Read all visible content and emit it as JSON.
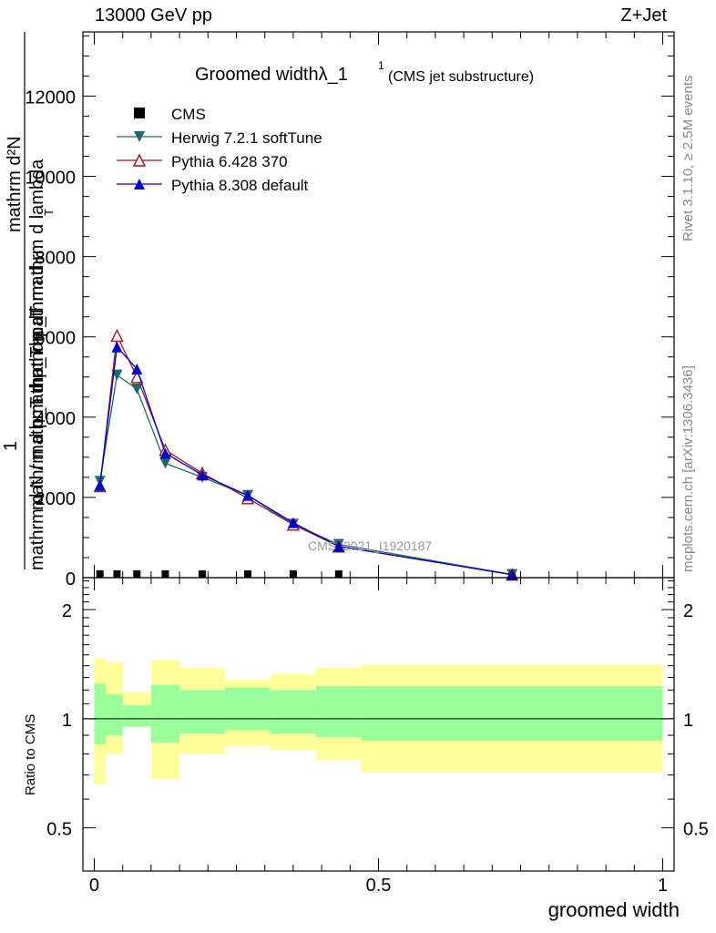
{
  "header": {
    "left": "13000 GeV pp",
    "right": "Z+Jet"
  },
  "side_labels": {
    "rivet": "Rivet 3.1.10, ≥ 2.5M events",
    "mcplots": "mcplots.cern.ch [arXiv:1306.3436]"
  },
  "chart_data": [
    {
      "type": "line",
      "title": "Groomed width",
      "title_symbol": "λ_1",
      "title_sup": "1",
      "title_note": "(CMS jet substructure)",
      "ylabel_numerator": "mathrm d²N",
      "ylabel_numerator_lower": "mathrm d p_T mathrm d lambda",
      "ylabel_sub": "T",
      "ylabel_one": "1",
      "ylabel_denominator": "mathrm d N / mathrm d p_T mathrm d ...",
      "ylabel_denominator_upper": "mathrm d p_T mathrm d",
      "ylim": [
        0,
        13600
      ],
      "yticks": [
        0,
        2000,
        4000,
        6000,
        8000,
        10000,
        12000
      ],
      "ytick_labels": [
        "0",
        "2000",
        "4000",
        "6000",
        "8000",
        "10000",
        "12000"
      ],
      "xlim": [
        -0.02,
        1.02
      ],
      "watermark": "CMS_2021_I1920187",
      "legend_position": "top-left",
      "x": [
        0.01,
        0.04,
        0.075,
        0.125,
        0.19,
        0.27,
        0.35,
        0.43,
        0.735
      ],
      "series": [
        {
          "name": "CMS",
          "color": "#000000",
          "marker": "square",
          "values": [
            0,
            0,
            0,
            0,
            0,
            0,
            0,
            0,
            0
          ]
        },
        {
          "name": "Herwig 7.2.1 softTune",
          "color": "#1f6b6b",
          "marker": "triangle-down",
          "values": [
            2400,
            5050,
            4700,
            2850,
            2500,
            2050,
            1330,
            830,
            80
          ]
        },
        {
          "name": "Pythia 6.428 370",
          "color": "#a01818",
          "marker": "triangle-up-open",
          "values": [
            2280,
            6030,
            5000,
            3180,
            2600,
            1980,
            1320,
            780,
            75
          ]
        },
        {
          "name": "Pythia 8.308 default",
          "color": "#0000cc",
          "marker": "triangle-up",
          "values": [
            2300,
            5750,
            5200,
            3100,
            2560,
            2050,
            1370,
            780,
            75
          ]
        }
      ]
    },
    {
      "type": "area",
      "ylabel": "Ratio to CMS",
      "xlabel": "groomed width",
      "ylim": [
        0.38,
        2.45
      ],
      "yticks": [
        0.5,
        1,
        2
      ],
      "ytick_labels": [
        "0.5",
        "1",
        "2"
      ],
      "xticks": [
        0,
        0.5,
        1
      ],
      "xtick_labels": [
        "0",
        "0.5",
        "1"
      ],
      "bins": [
        [
          0.0,
          0.02
        ],
        [
          0.02,
          0.05
        ],
        [
          0.05,
          0.1
        ],
        [
          0.1,
          0.15
        ],
        [
          0.15,
          0.23
        ],
        [
          0.23,
          0.31
        ],
        [
          0.31,
          0.39
        ],
        [
          0.39,
          0.47
        ],
        [
          0.47,
          1.0
        ]
      ],
      "stat_band": [
        [
          0.85,
          1.25
        ],
        [
          0.9,
          1.17
        ],
        [
          0.95,
          1.09
        ],
        [
          0.86,
          1.24
        ],
        [
          0.91,
          1.2
        ],
        [
          0.93,
          1.22
        ],
        [
          0.91,
          1.2
        ],
        [
          0.89,
          1.23
        ],
        [
          0.87,
          1.23
        ]
      ],
      "total_band": [
        [
          0.66,
          1.47
        ],
        [
          0.8,
          1.43
        ],
        [
          0.95,
          1.18
        ],
        [
          0.68,
          1.45
        ],
        [
          0.8,
          1.38
        ],
        [
          0.84,
          1.28
        ],
        [
          0.82,
          1.33
        ],
        [
          0.77,
          1.38
        ],
        [
          0.71,
          1.41
        ]
      ],
      "stat_color": "#99ff99",
      "total_color": "#ffff99",
      "reference": 1
    }
  ]
}
